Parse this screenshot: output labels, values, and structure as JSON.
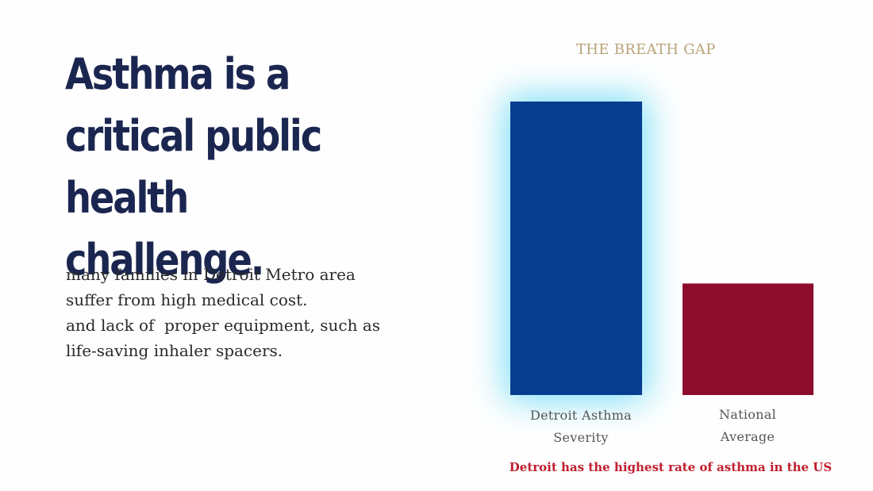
{
  "headline": "Asthma is a critical public health challenge.",
  "body_lines": [
    "many families in Detroit Metro area",
    "suffer from high medical cost.",
    "and lack of  proper equipment, such as",
    "life-saving inhaler spacers."
  ],
  "chart_data": {
    "type": "bar",
    "title": "THE BREATH GAP",
    "categories": [
      "Detroit Asthma Severity",
      "National Average"
    ],
    "category_lines": [
      [
        "Detroit Asthma",
        "Severity"
      ],
      [
        "National",
        "Average"
      ]
    ],
    "values": [
      100,
      38
    ],
    "ylim": [
      0,
      100
    ],
    "xlabel": "",
    "ylabel": "",
    "grid": false,
    "colors": [
      "#073d8f",
      "#8e0c2b"
    ],
    "glow_color": "#5fd8f5",
    "annotation": "Detroit has the highest rate of asthma in the US"
  },
  "colors": {
    "headline": "#1b2650",
    "title": "#b9a377",
    "annotation": "#c01e2e"
  }
}
